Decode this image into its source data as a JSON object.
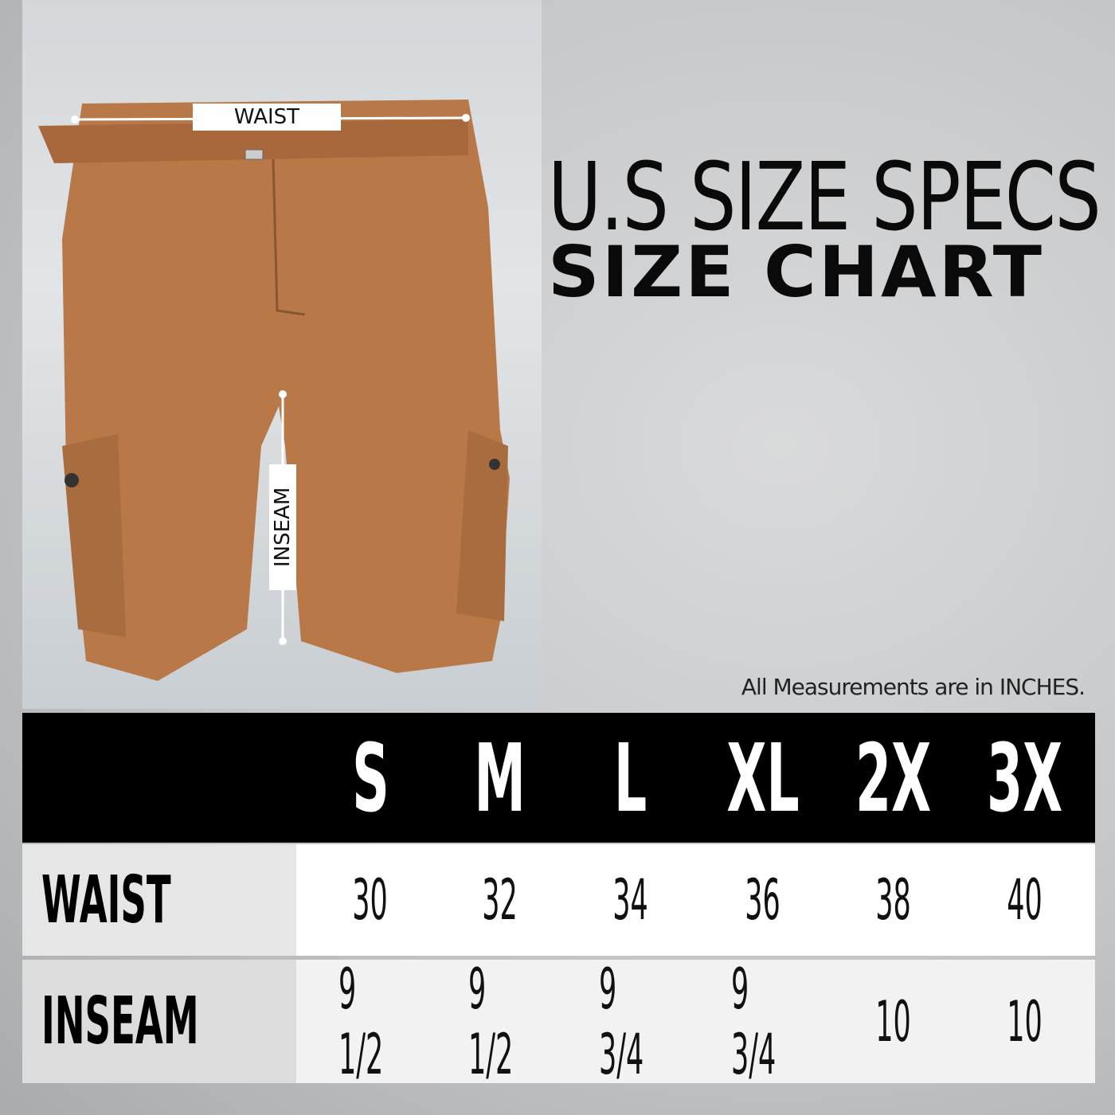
{
  "title": {
    "line1": "U.S SIZE SPECS",
    "line2": "SIZE CHART"
  },
  "image_labels": {
    "waist": "WAIST",
    "inseam": "INSEAM"
  },
  "note": "All Measurements are in INCHES.",
  "colors": {
    "shorts": "#b87848",
    "header": "#000000",
    "header_text": "#ffffff"
  },
  "table": {
    "sizes": [
      "S",
      "M",
      "L",
      "XL",
      "2X",
      "3X"
    ],
    "rows": [
      {
        "label": "WAIST",
        "values": [
          "30",
          "32",
          "34",
          "36",
          "38",
          "40"
        ]
      },
      {
        "label": "INSEAM",
        "values": [
          "9 1/2",
          "9 1/2",
          "9 3/4",
          "9 3/4",
          "10",
          "10"
        ]
      }
    ]
  }
}
